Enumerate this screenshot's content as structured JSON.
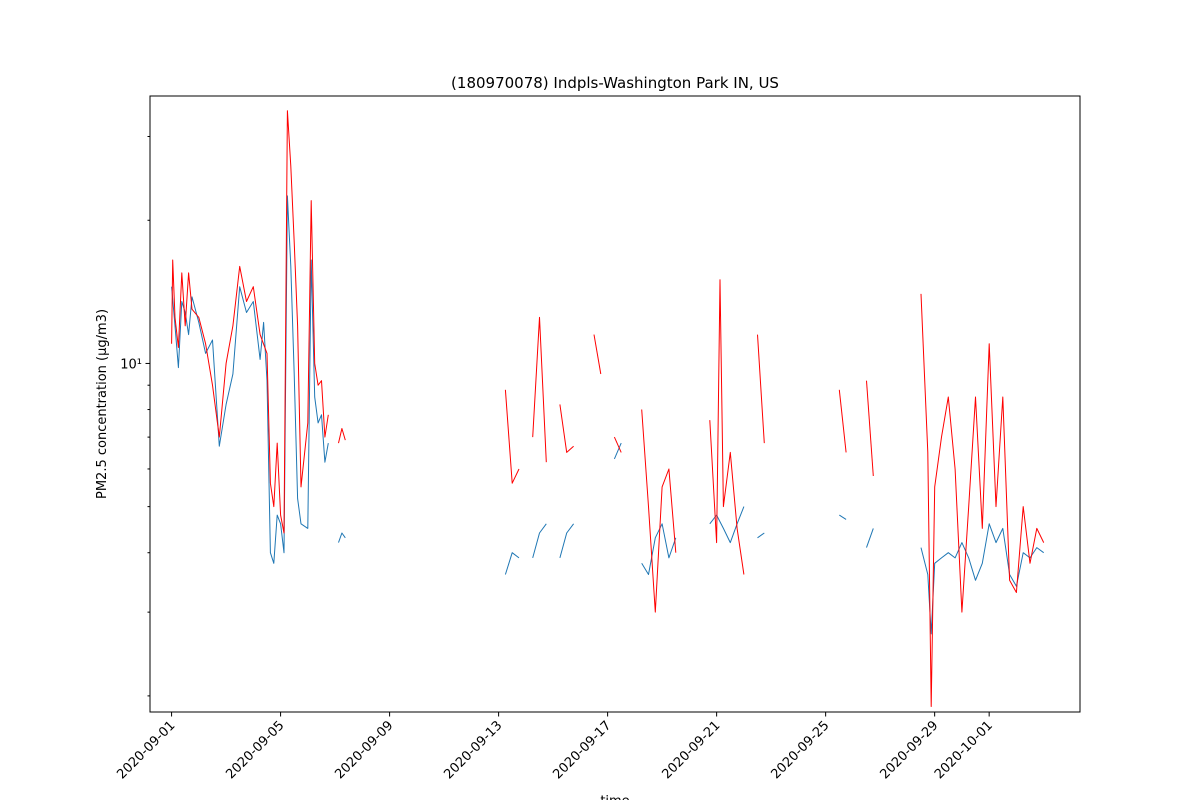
{
  "chart_data": {
    "type": "line",
    "title": "(180970078) Indpls-Washington Park IN, US",
    "xlabel": "time",
    "ylabel": "PM2.5 concentration (µg/m3)",
    "y_scale": "log",
    "ylim": [
      1.85,
      36.5
    ],
    "y_major_ticks": [
      {
        "value": 10,
        "label": "10¹"
      }
    ],
    "y_minor_ticks": [
      2,
      3,
      4,
      5,
      6,
      7,
      8,
      9,
      20,
      30
    ],
    "xlim": [
      "2020-08-31T05:00",
      "2020-10-04T08:00"
    ],
    "x_tick_labels": [
      "2020-09-01",
      "2020-09-05",
      "2020-09-09",
      "2020-09-13",
      "2020-09-17",
      "2020-09-21",
      "2020-09-25",
      "2020-09-29",
      "2020-10-01"
    ],
    "series": [
      {
        "color": "#1f77b4",
        "segments": [
          [
            [
              "2020-09-01T00:00",
              14.5
            ],
            [
              "2020-09-01T03:00",
              12.0
            ],
            [
              "2020-09-01T06:00",
              9.8
            ],
            [
              "2020-09-01T09:00",
              13.5
            ],
            [
              "2020-09-01T12:00",
              12.8
            ],
            [
              "2020-09-01T15:00",
              11.5
            ],
            [
              "2020-09-01T18:00",
              13.8
            ],
            [
              "2020-09-02T00:00",
              12.2
            ],
            [
              "2020-09-02T06:00",
              10.5
            ],
            [
              "2020-09-02T12:00",
              11.2
            ],
            [
              "2020-09-02T18:00",
              6.7
            ],
            [
              "2020-09-03T00:00",
              8.2
            ],
            [
              "2020-09-03T06:00",
              9.5
            ],
            [
              "2020-09-03T12:00",
              14.5
            ],
            [
              "2020-09-03T18:00",
              12.8
            ],
            [
              "2020-09-04T00:00",
              13.5
            ],
            [
              "2020-09-04T06:00",
              10.2
            ],
            [
              "2020-09-04T09:00",
              12.2
            ],
            [
              "2020-09-04T12:00",
              9.2
            ],
            [
              "2020-09-04T15:00",
              4.0
            ],
            [
              "2020-09-04T18:00",
              3.8
            ],
            [
              "2020-09-04T21:00",
              4.8
            ],
            [
              "2020-09-05T00:00",
              4.6
            ],
            [
              "2020-09-05T03:00",
              4.0
            ],
            [
              "2020-09-05T06:00",
              22.5
            ],
            [
              "2020-09-05T09:00",
              16.0
            ],
            [
              "2020-09-05T12:00",
              9.5
            ],
            [
              "2020-09-05T15:00",
              5.2
            ],
            [
              "2020-09-05T18:00",
              4.6
            ],
            [
              "2020-09-06T00:00",
              4.5
            ],
            [
              "2020-09-06T03:00",
              16.5
            ],
            [
              "2020-09-06T06:00",
              8.5
            ],
            [
              "2020-09-06T09:00",
              7.5
            ],
            [
              "2020-09-06T12:00",
              7.8
            ],
            [
              "2020-09-06T15:00",
              6.2
            ],
            [
              "2020-09-06T18:00",
              6.8
            ]
          ],
          [
            [
              "2020-09-07T03:00",
              4.2
            ],
            [
              "2020-09-07T06:00",
              4.4
            ],
            [
              "2020-09-07T09:00",
              4.3
            ]
          ],
          [
            [
              "2020-09-13T06:00",
              3.6
            ],
            [
              "2020-09-13T12:00",
              4.0
            ],
            [
              "2020-09-13T18:00",
              3.9
            ]
          ],
          [
            [
              "2020-09-14T06:00",
              3.9
            ],
            [
              "2020-09-14T12:00",
              4.4
            ],
            [
              "2020-09-14T18:00",
              4.6
            ]
          ],
          [
            [
              "2020-09-15T06:00",
              3.9
            ],
            [
              "2020-09-15T12:00",
              4.4
            ],
            [
              "2020-09-15T18:00",
              4.6
            ]
          ],
          [
            [
              "2020-09-17T06:00",
              6.3
            ],
            [
              "2020-09-17T12:00",
              6.8
            ]
          ],
          [
            [
              "2020-09-18T06:00",
              3.8
            ],
            [
              "2020-09-18T12:00",
              3.6
            ],
            [
              "2020-09-18T18:00",
              4.3
            ],
            [
              "2020-09-19T00:00",
              4.6
            ],
            [
              "2020-09-19T06:00",
              3.9
            ],
            [
              "2020-09-19T12:00",
              4.3
            ]
          ],
          [
            [
              "2020-09-20T18:00",
              4.6
            ],
            [
              "2020-09-21T00:00",
              4.8
            ],
            [
              "2020-09-21T06:00",
              4.5
            ],
            [
              "2020-09-21T12:00",
              4.2
            ],
            [
              "2020-09-21T18:00",
              4.6
            ],
            [
              "2020-09-22T00:00",
              5.0
            ]
          ],
          [
            [
              "2020-09-22T12:00",
              4.3
            ],
            [
              "2020-09-22T18:00",
              4.4
            ]
          ],
          [
            [
              "2020-09-25T12:00",
              4.8
            ],
            [
              "2020-09-25T18:00",
              4.7
            ]
          ],
          [
            [
              "2020-09-26T12:00",
              4.1
            ],
            [
              "2020-09-26T18:00",
              4.5
            ]
          ],
          [
            [
              "2020-09-28T12:00",
              4.1
            ],
            [
              "2020-09-28T18:00",
              3.6
            ],
            [
              "2020-09-28T21:00",
              2.7
            ],
            [
              "2020-09-29T00:00",
              3.8
            ],
            [
              "2020-09-29T06:00",
              3.9
            ],
            [
              "2020-09-29T12:00",
              4.0
            ],
            [
              "2020-09-29T18:00",
              3.9
            ],
            [
              "2020-09-30T00:00",
              4.2
            ],
            [
              "2020-09-30T06:00",
              3.9
            ],
            [
              "2020-09-30T12:00",
              3.5
            ],
            [
              "2020-09-30T18:00",
              3.8
            ],
            [
              "2020-10-01T00:00",
              4.6
            ],
            [
              "2020-10-01T06:00",
              4.2
            ],
            [
              "2020-10-01T12:00",
              4.5
            ],
            [
              "2020-10-01T18:00",
              3.6
            ],
            [
              "2020-10-02T00:00",
              3.4
            ],
            [
              "2020-10-02T06:00",
              4.0
            ],
            [
              "2020-10-02T12:00",
              3.9
            ],
            [
              "2020-10-02T18:00",
              4.1
            ],
            [
              "2020-10-03T00:00",
              4.0
            ]
          ]
        ]
      },
      {
        "color": "#ff0000",
        "segments": [
          [
            [
              "2020-09-01T00:00",
              11.0
            ],
            [
              "2020-09-01T01:00",
              16.5
            ],
            [
              "2020-09-01T03:00",
              12.5
            ],
            [
              "2020-09-01T06:00",
              10.8
            ],
            [
              "2020-09-01T09:00",
              15.5
            ],
            [
              "2020-09-01T12:00",
              12.0
            ],
            [
              "2020-09-01T15:00",
              15.5
            ],
            [
              "2020-09-01T18:00",
              13.0
            ],
            [
              "2020-09-02T00:00",
              12.5
            ],
            [
              "2020-09-02T06:00",
              11.0
            ],
            [
              "2020-09-02T12:00",
              9.0
            ],
            [
              "2020-09-02T18:00",
              7.0
            ],
            [
              "2020-09-03T00:00",
              10.0
            ],
            [
              "2020-09-03T06:00",
              12.0
            ],
            [
              "2020-09-03T12:00",
              16.0
            ],
            [
              "2020-09-03T18:00",
              13.5
            ],
            [
              "2020-09-04T00:00",
              14.5
            ],
            [
              "2020-09-04T06:00",
              11.5
            ],
            [
              "2020-09-04T12:00",
              10.5
            ],
            [
              "2020-09-04T15:00",
              5.6
            ],
            [
              "2020-09-04T18:00",
              5.0
            ],
            [
              "2020-09-04T21:00",
              6.8
            ],
            [
              "2020-09-05T00:00",
              4.8
            ],
            [
              "2020-09-05T03:00",
              4.4
            ],
            [
              "2020-09-05T06:00",
              34.0
            ],
            [
              "2020-09-05T09:00",
              26.0
            ],
            [
              "2020-09-05T12:00",
              18.0
            ],
            [
              "2020-09-05T15:00",
              12.0
            ],
            [
              "2020-09-05T18:00",
              5.5
            ],
            [
              "2020-09-06T00:00",
              7.5
            ],
            [
              "2020-09-06T03:00",
              22.0
            ],
            [
              "2020-09-06T06:00",
              10.0
            ],
            [
              "2020-09-06T09:00",
              9.0
            ],
            [
              "2020-09-06T12:00",
              9.2
            ],
            [
              "2020-09-06T15:00",
              7.0
            ],
            [
              "2020-09-06T18:00",
              7.8
            ]
          ],
          [
            [
              "2020-09-07T03:00",
              6.8
            ],
            [
              "2020-09-07T06:00",
              7.3
            ],
            [
              "2020-09-07T09:00",
              6.9
            ]
          ],
          [
            [
              "2020-09-13T06:00",
              8.8
            ],
            [
              "2020-09-13T12:00",
              5.6
            ],
            [
              "2020-09-13T18:00",
              6.0
            ]
          ],
          [
            [
              "2020-09-14T06:00",
              7.0
            ],
            [
              "2020-09-14T12:00",
              12.5
            ],
            [
              "2020-09-14T18:00",
              6.2
            ]
          ],
          [
            [
              "2020-09-15T06:00",
              8.2
            ],
            [
              "2020-09-15T12:00",
              6.5
            ],
            [
              "2020-09-15T18:00",
              6.7
            ]
          ],
          [
            [
              "2020-09-16T12:00",
              11.5
            ],
            [
              "2020-09-16T18:00",
              9.5
            ]
          ],
          [
            [
              "2020-09-17T06:00",
              7.0
            ],
            [
              "2020-09-17T12:00",
              6.5
            ]
          ],
          [
            [
              "2020-09-18T06:00",
              8.0
            ],
            [
              "2020-09-18T12:00",
              5.0
            ],
            [
              "2020-09-18T18:00",
              3.0
            ],
            [
              "2020-09-19T00:00",
              5.5
            ],
            [
              "2020-09-19T06:00",
              6.0
            ],
            [
              "2020-09-19T12:00",
              4.0
            ]
          ],
          [
            [
              "2020-09-20T18:00",
              7.6
            ],
            [
              "2020-09-21T00:00",
              4.2
            ],
            [
              "2020-09-21T03:00",
              15.0
            ],
            [
              "2020-09-21T06:00",
              5.0
            ],
            [
              "2020-09-21T12:00",
              6.5
            ],
            [
              "2020-09-21T18:00",
              4.5
            ],
            [
              "2020-09-22T00:00",
              3.6
            ]
          ],
          [
            [
              "2020-09-22T12:00",
              11.5
            ],
            [
              "2020-09-22T18:00",
              6.8
            ]
          ],
          [
            [
              "2020-09-25T12:00",
              8.8
            ],
            [
              "2020-09-25T18:00",
              6.5
            ]
          ],
          [
            [
              "2020-09-26T12:00",
              9.2
            ],
            [
              "2020-09-26T18:00",
              5.8
            ]
          ],
          [
            [
              "2020-09-28T12:00",
              14.0
            ],
            [
              "2020-09-28T18:00",
              6.5
            ],
            [
              "2020-09-28T21:00",
              1.9
            ],
            [
              "2020-09-29T00:00",
              5.5
            ],
            [
              "2020-09-29T06:00",
              7.0
            ],
            [
              "2020-09-29T12:00",
              8.5
            ],
            [
              "2020-09-29T18:00",
              6.0
            ],
            [
              "2020-09-30T00:00",
              3.0
            ],
            [
              "2020-09-30T06:00",
              5.0
            ],
            [
              "2020-09-30T12:00",
              8.5
            ],
            [
              "2020-09-30T18:00",
              4.5
            ],
            [
              "2020-10-01T00:00",
              11.0
            ],
            [
              "2020-10-01T06:00",
              5.0
            ],
            [
              "2020-10-01T12:00",
              8.5
            ],
            [
              "2020-10-01T18:00",
              3.5
            ],
            [
              "2020-10-02T00:00",
              3.3
            ],
            [
              "2020-10-02T06:00",
              5.0
            ],
            [
              "2020-10-02T12:00",
              3.8
            ],
            [
              "2020-10-02T18:00",
              4.5
            ],
            [
              "2020-10-03T00:00",
              4.2
            ]
          ]
        ]
      }
    ]
  }
}
